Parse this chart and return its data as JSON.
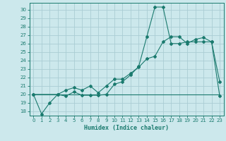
{
  "title": "",
  "xlabel": "Humidex (Indice chaleur)",
  "bg_color": "#cce8ec",
  "line_color": "#1a7a6e",
  "xlim": [
    -0.5,
    23.5
  ],
  "ylim": [
    17.5,
    30.8
  ],
  "yticks": [
    18,
    19,
    20,
    21,
    22,
    23,
    24,
    25,
    26,
    27,
    28,
    29,
    30
  ],
  "xticks": [
    0,
    1,
    2,
    3,
    4,
    5,
    6,
    7,
    8,
    9,
    10,
    11,
    12,
    13,
    14,
    15,
    16,
    17,
    18,
    19,
    20,
    21,
    22,
    23
  ],
  "line1_x": [
    0,
    1,
    2,
    3,
    4,
    5,
    6,
    7,
    8,
    9,
    10,
    11,
    12,
    13,
    14,
    15,
    16,
    17,
    18,
    19,
    20,
    21,
    22,
    23
  ],
  "line1_y": [
    20,
    17.7,
    19.0,
    20.0,
    19.8,
    20.3,
    19.9,
    19.9,
    19.9,
    20.0,
    21.2,
    21.5,
    22.3,
    23.3,
    26.8,
    30.3,
    30.3,
    26.0,
    26.0,
    26.2,
    26.2,
    26.2,
    26.2,
    19.8
  ],
  "line2_x": [
    0,
    3,
    4,
    5,
    6,
    7,
    8,
    9,
    10,
    11,
    12,
    13,
    14,
    15,
    16,
    17,
    18,
    19,
    20,
    21,
    22,
    23
  ],
  "line2_y": [
    20,
    20.0,
    20.5,
    20.8,
    20.5,
    21.0,
    20.2,
    21.0,
    21.8,
    21.8,
    22.5,
    23.2,
    24.2,
    24.5,
    26.2,
    26.8,
    26.8,
    26.0,
    26.5,
    26.7,
    26.2,
    21.5
  ],
  "line3_x": [
    0,
    23
  ],
  "line3_y": [
    20,
    20
  ],
  "grid_color": "#aacdd4"
}
